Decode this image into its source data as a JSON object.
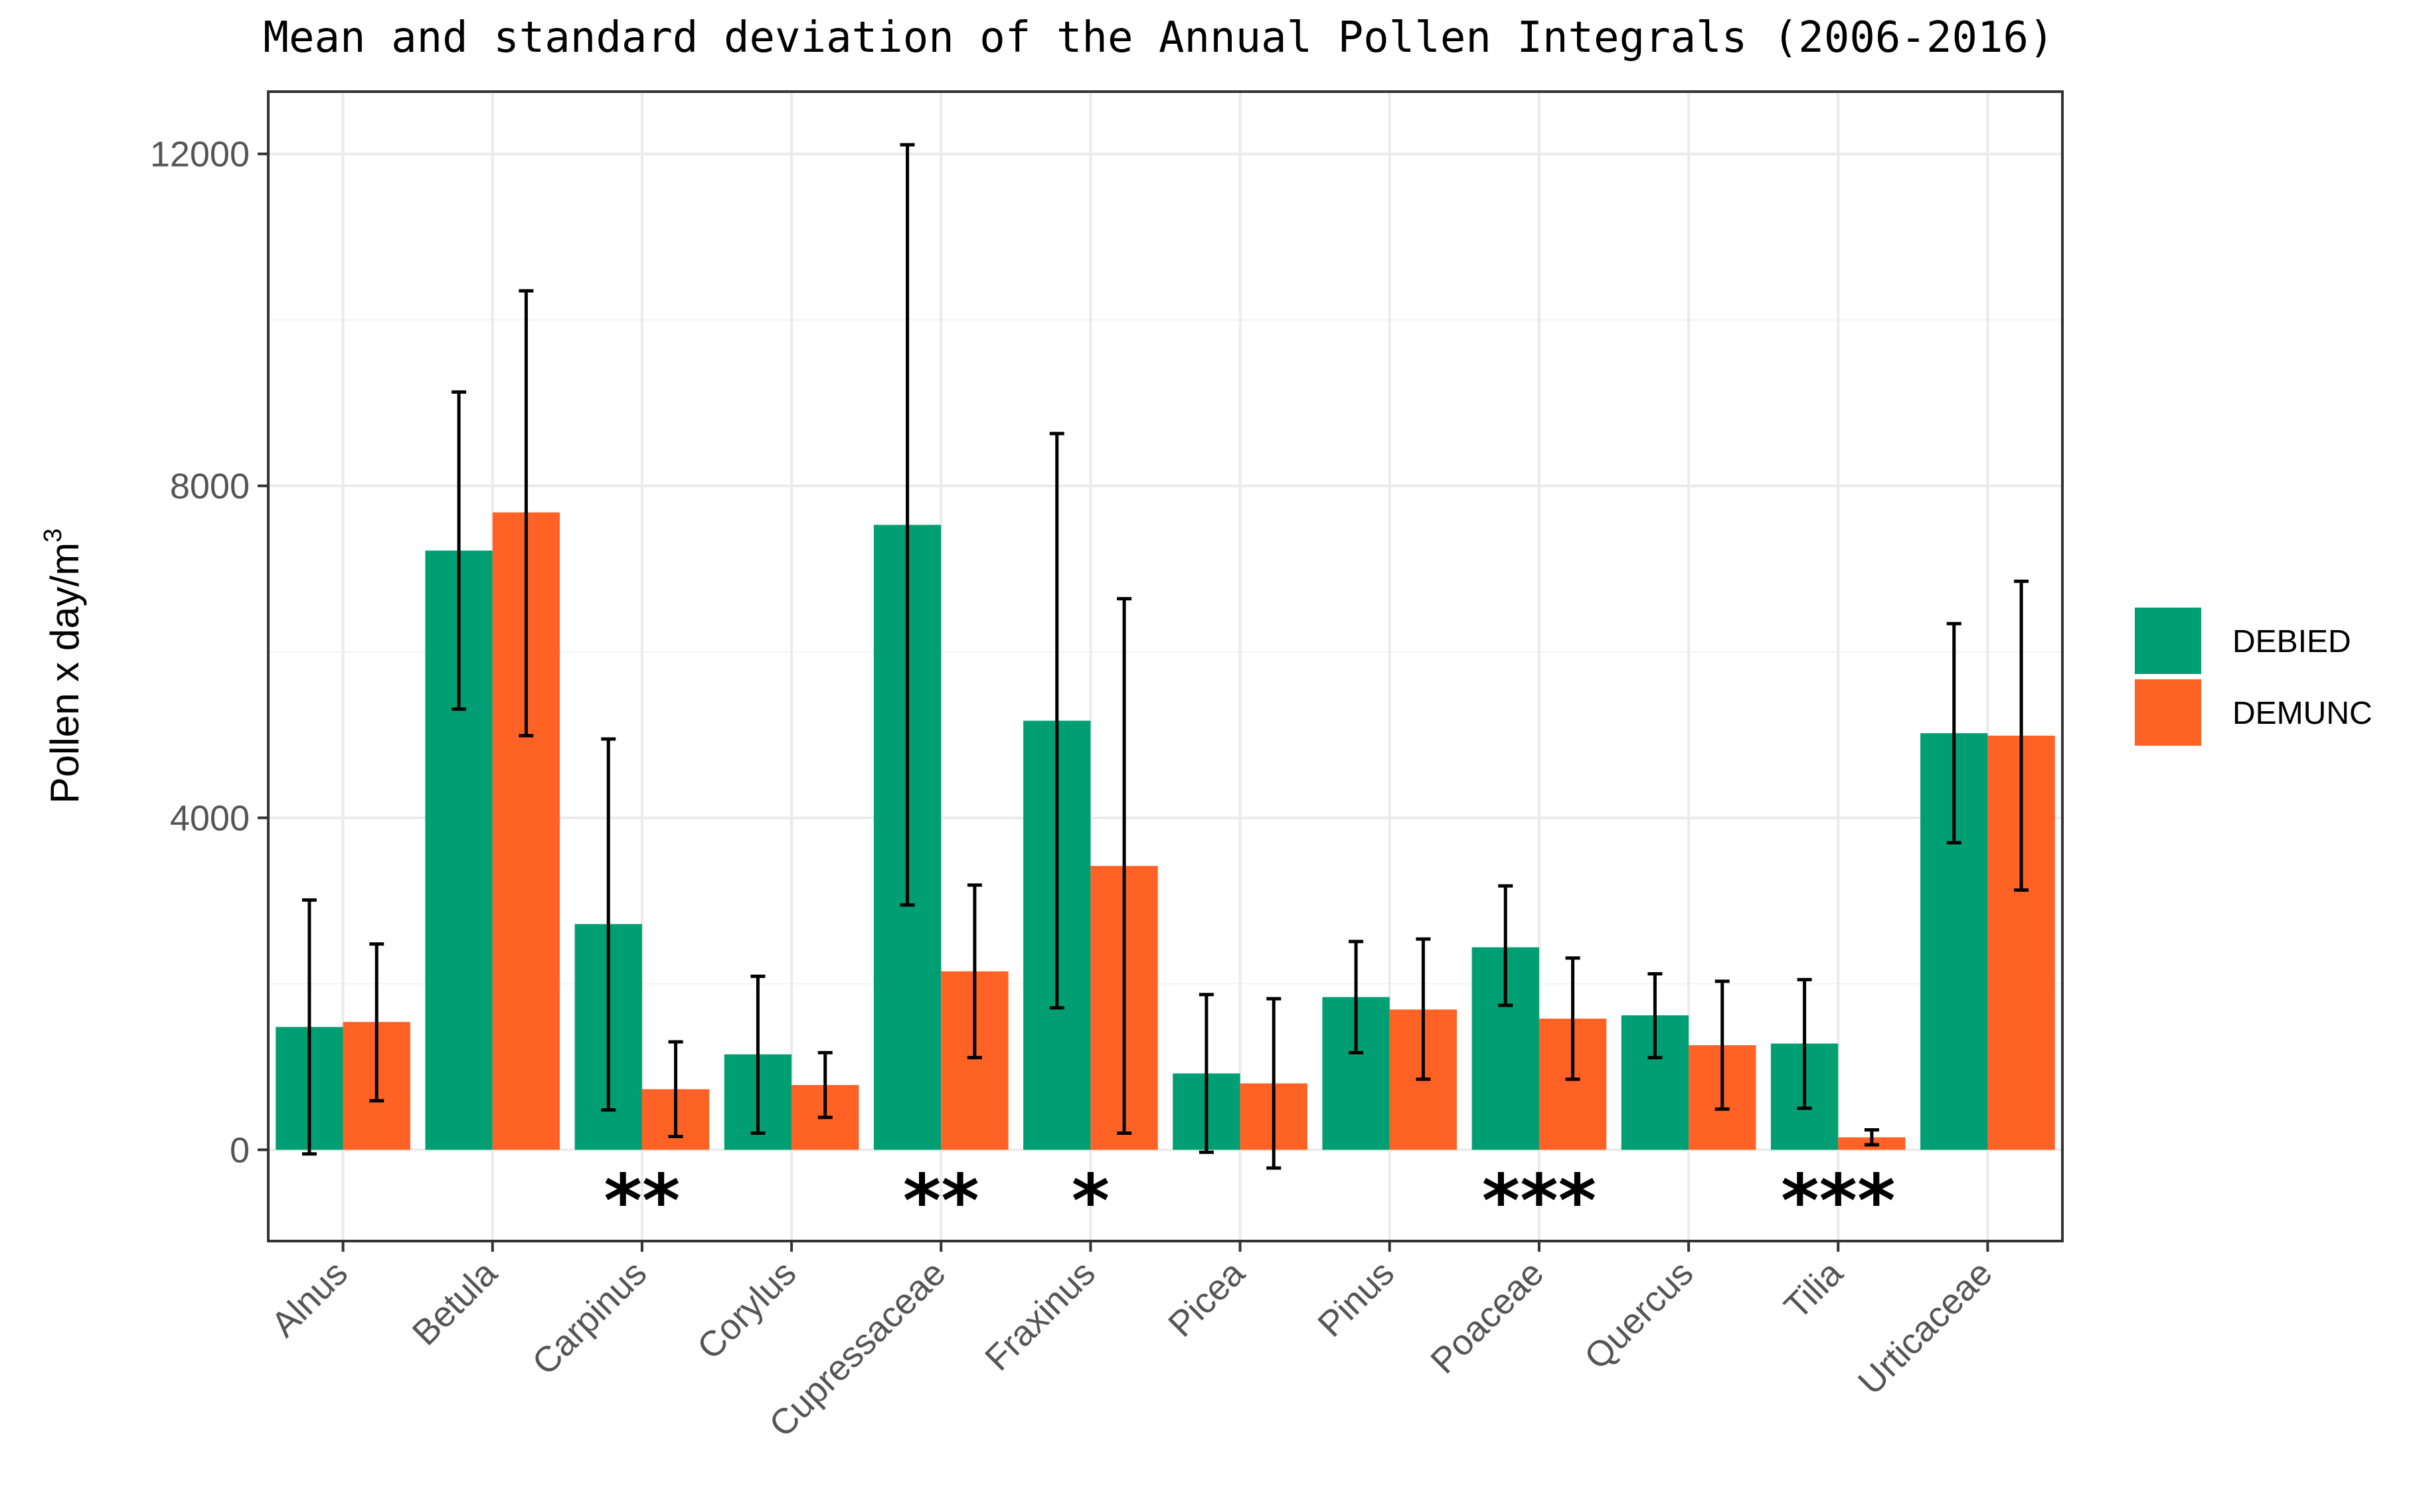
{
  "chart_data": {
    "type": "bar",
    "title": "Mean and standard deviation of the Annual Pollen Integrals (2006-2016)",
    "xlabel": "",
    "ylabel": "Pollen x day/m",
    "ylabel_superscript": "3",
    "ylim": [
      -1100,
      12750
    ],
    "yticks": [
      0,
      4000,
      8000,
      12000
    ],
    "ytick_labels": [
      "0",
      "4000",
      "8000",
      "12000"
    ],
    "grid": true,
    "legend_position": "right",
    "categories": [
      "Alnus",
      "Betula",
      "Carpinus",
      "Corylus",
      "Cupressaceae",
      "Fraxinus",
      "Picea",
      "Pinus",
      "Poaceae",
      "Quercus",
      "Tilia",
      "Urticaceae"
    ],
    "series": [
      {
        "name": "DEBIED",
        "color": "#009E73",
        "values": [
          1480,
          7220,
          2720,
          1150,
          7530,
          5170,
          920,
          1840,
          2440,
          1620,
          1280,
          5020
        ],
        "err_low": [
          -50,
          5310,
          480,
          200,
          2950,
          1710,
          -30,
          1170,
          1740,
          1110,
          500,
          3700
        ],
        "err_high": [
          3010,
          9130,
          4950,
          2090,
          12110,
          8630,
          1870,
          2510,
          3180,
          2120,
          2050,
          6340
        ]
      },
      {
        "name": "DEMUNC",
        "color": "#FF6224",
        "values": [
          1540,
          7680,
          730,
          780,
          2150,
          3420,
          800,
          1690,
          1580,
          1260,
          150,
          4990
        ],
        "err_low": [
          590,
          4990,
          160,
          390,
          1110,
          200,
          -220,
          850,
          850,
          490,
          60,
          3130
        ],
        "err_high": [
          2480,
          10350,
          1300,
          1170,
          3190,
          6640,
          1820,
          2540,
          2310,
          2030,
          240,
          6850
        ]
      }
    ],
    "annotations": [
      "",
      "",
      "**",
      "",
      "**",
      "*",
      "",
      "",
      "***",
      "",
      "***",
      ""
    ]
  }
}
